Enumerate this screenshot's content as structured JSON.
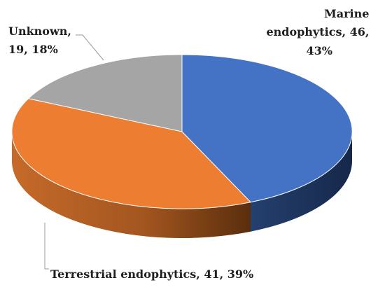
{
  "chart_data": {
    "type": "pie",
    "slices": [
      {
        "name": "Marine endophytics",
        "value": 46,
        "percent": "43%",
        "color": "#4472c4",
        "side_color": "#1f3358"
      },
      {
        "name": "Terrestrial endophytics",
        "value": 41,
        "percent": "39%",
        "color": "#ed7d31",
        "side_color": "#8a4517"
      },
      {
        "name": "Unknown",
        "value": 19,
        "percent": "18%",
        "color": "#a5a5a5",
        "side_color": "#6b6b6b"
      }
    ],
    "labels": {
      "marine": [
        "Marine",
        "endophytics, 46,",
        "43%"
      ],
      "terrestrial": [
        "Terrestrial endophytics, 41, 39%"
      ],
      "unknown": [
        "Unknown,",
        "19, 18%"
      ]
    },
    "style": "3d-pie",
    "legend": "none"
  }
}
